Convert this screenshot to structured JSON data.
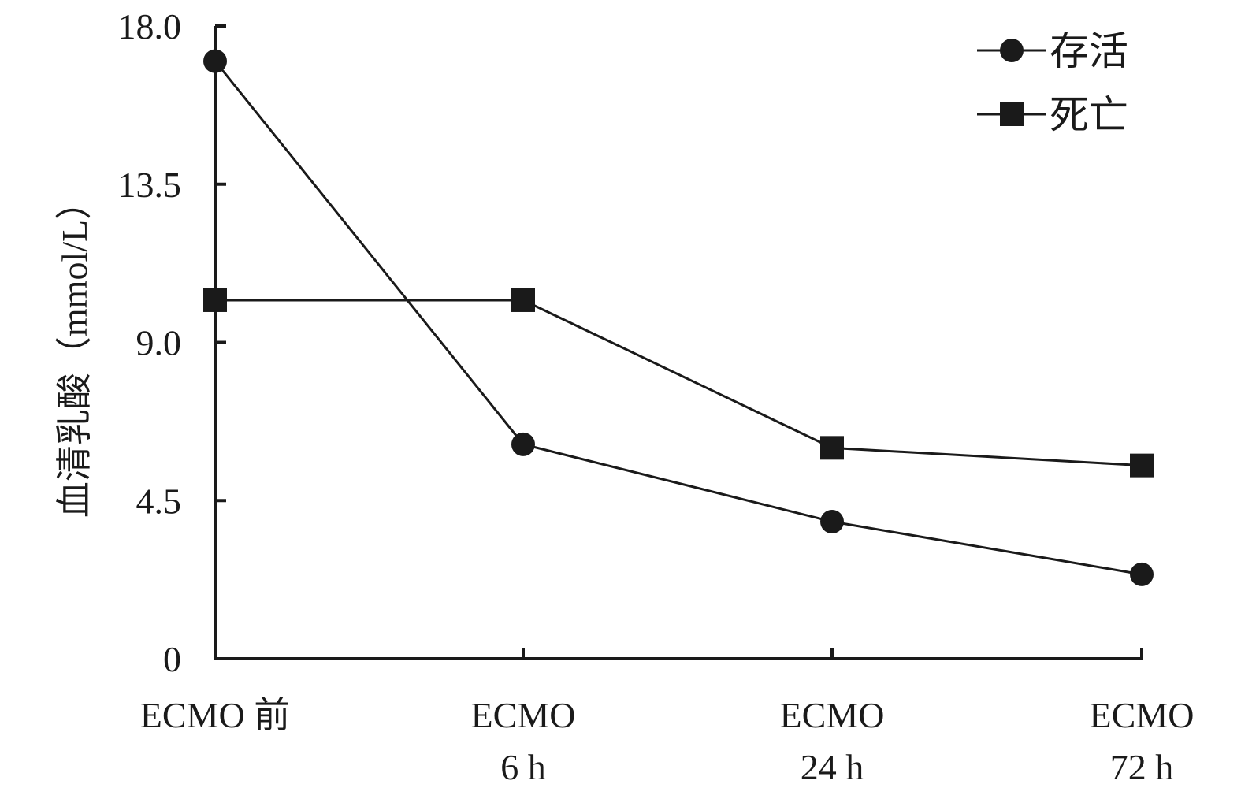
{
  "chart_data": {
    "type": "line",
    "title": "",
    "xlabel": "",
    "ylabel": "血清乳酸（mmol/L）",
    "categories": [
      [
        "ECMO 前"
      ],
      [
        "ECMO",
        "6 h"
      ],
      [
        "ECMO",
        "24 h"
      ],
      [
        "ECMO",
        "72 h"
      ]
    ],
    "yticks": [
      "0",
      "4.5",
      "9.0",
      "13.5",
      "18.0"
    ],
    "ylim": [
      0,
      18
    ],
    "grid": false,
    "legend_position": "top-right",
    "series": [
      {
        "name": "存活",
        "marker": "circle",
        "values": [
          17.0,
          6.1,
          3.9,
          2.4
        ]
      },
      {
        "name": "死亡",
        "marker": "square",
        "values": [
          10.2,
          10.2,
          6.0,
          5.5
        ]
      }
    ],
    "colors": {
      "line": "#1a1a1a",
      "background": "#ffffff"
    }
  }
}
